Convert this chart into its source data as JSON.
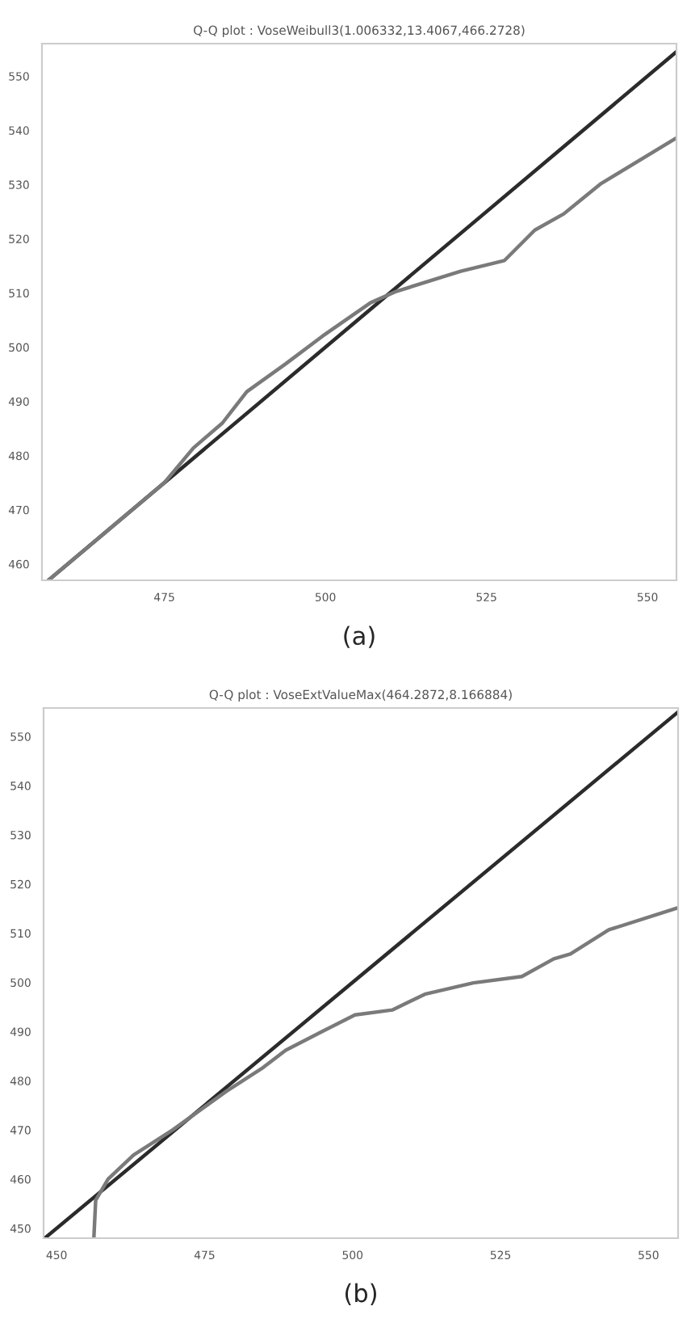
{
  "chart_data": [
    {
      "type": "line",
      "title": "Q-Q plot : VoseWeibull3(1.006332,13.4067,466.2728)",
      "annotations": [
        "(a)"
      ],
      "xlim": [
        456,
        554.5
      ],
      "ylim": [
        457,
        556
      ],
      "xticks": [
        475,
        500,
        525,
        550
      ],
      "yticks": [
        460,
        470,
        480,
        490,
        500,
        510,
        520,
        530,
        540,
        550
      ],
      "grid": false,
      "series": [
        {
          "color": "#2b2b2b",
          "x": [
            457,
            554.5
          ],
          "values": [
            457,
            554.5
          ]
        },
        {
          "color": "#7a7a7a",
          "x": [
            457,
            465,
            475,
            479.5,
            484,
            487.8,
            493.8,
            499.5,
            507,
            511,
            521,
            527.8,
            532.5,
            537,
            542.8,
            554.5
          ],
          "values": [
            457,
            465,
            475,
            481.4,
            486,
            491.8,
            496.9,
            502,
            508.2,
            510.3,
            514,
            516,
            521.6,
            524.6,
            530.2,
            538.6
          ]
        }
      ]
    },
    {
      "type": "line",
      "title": "Q-Q plot : VoseExtValueMax(464.2872,8.166884)",
      "annotations": [
        "(b)"
      ],
      "xlim": [
        447.8,
        555
      ],
      "ylim": [
        448,
        555.8
      ],
      "xticks": [
        450,
        475,
        500,
        525,
        550
      ],
      "yticks": [
        450,
        460,
        470,
        480,
        490,
        500,
        510,
        520,
        530,
        540,
        550
      ],
      "grid": false,
      "series": [
        {
          "color": "#2b2b2b",
          "x": [
            448,
            555
          ],
          "values": [
            448,
            555
          ]
        },
        {
          "color": "#7a7a7a",
          "x": [
            456.3,
            456.6,
            458.7,
            463,
            469.6,
            478.6,
            484.9,
            488.7,
            495,
            500.4,
            506.7,
            512.2,
            520.4,
            528.6,
            534,
            536.8,
            543.3,
            555
          ],
          "values": [
            448.2,
            455.7,
            460,
            464.9,
            470,
            477.8,
            482.7,
            486.2,
            490.1,
            493.4,
            494.4,
            497.6,
            499.9,
            501.2,
            504.8,
            505.8,
            510.7,
            515.2
          ]
        }
      ]
    }
  ]
}
